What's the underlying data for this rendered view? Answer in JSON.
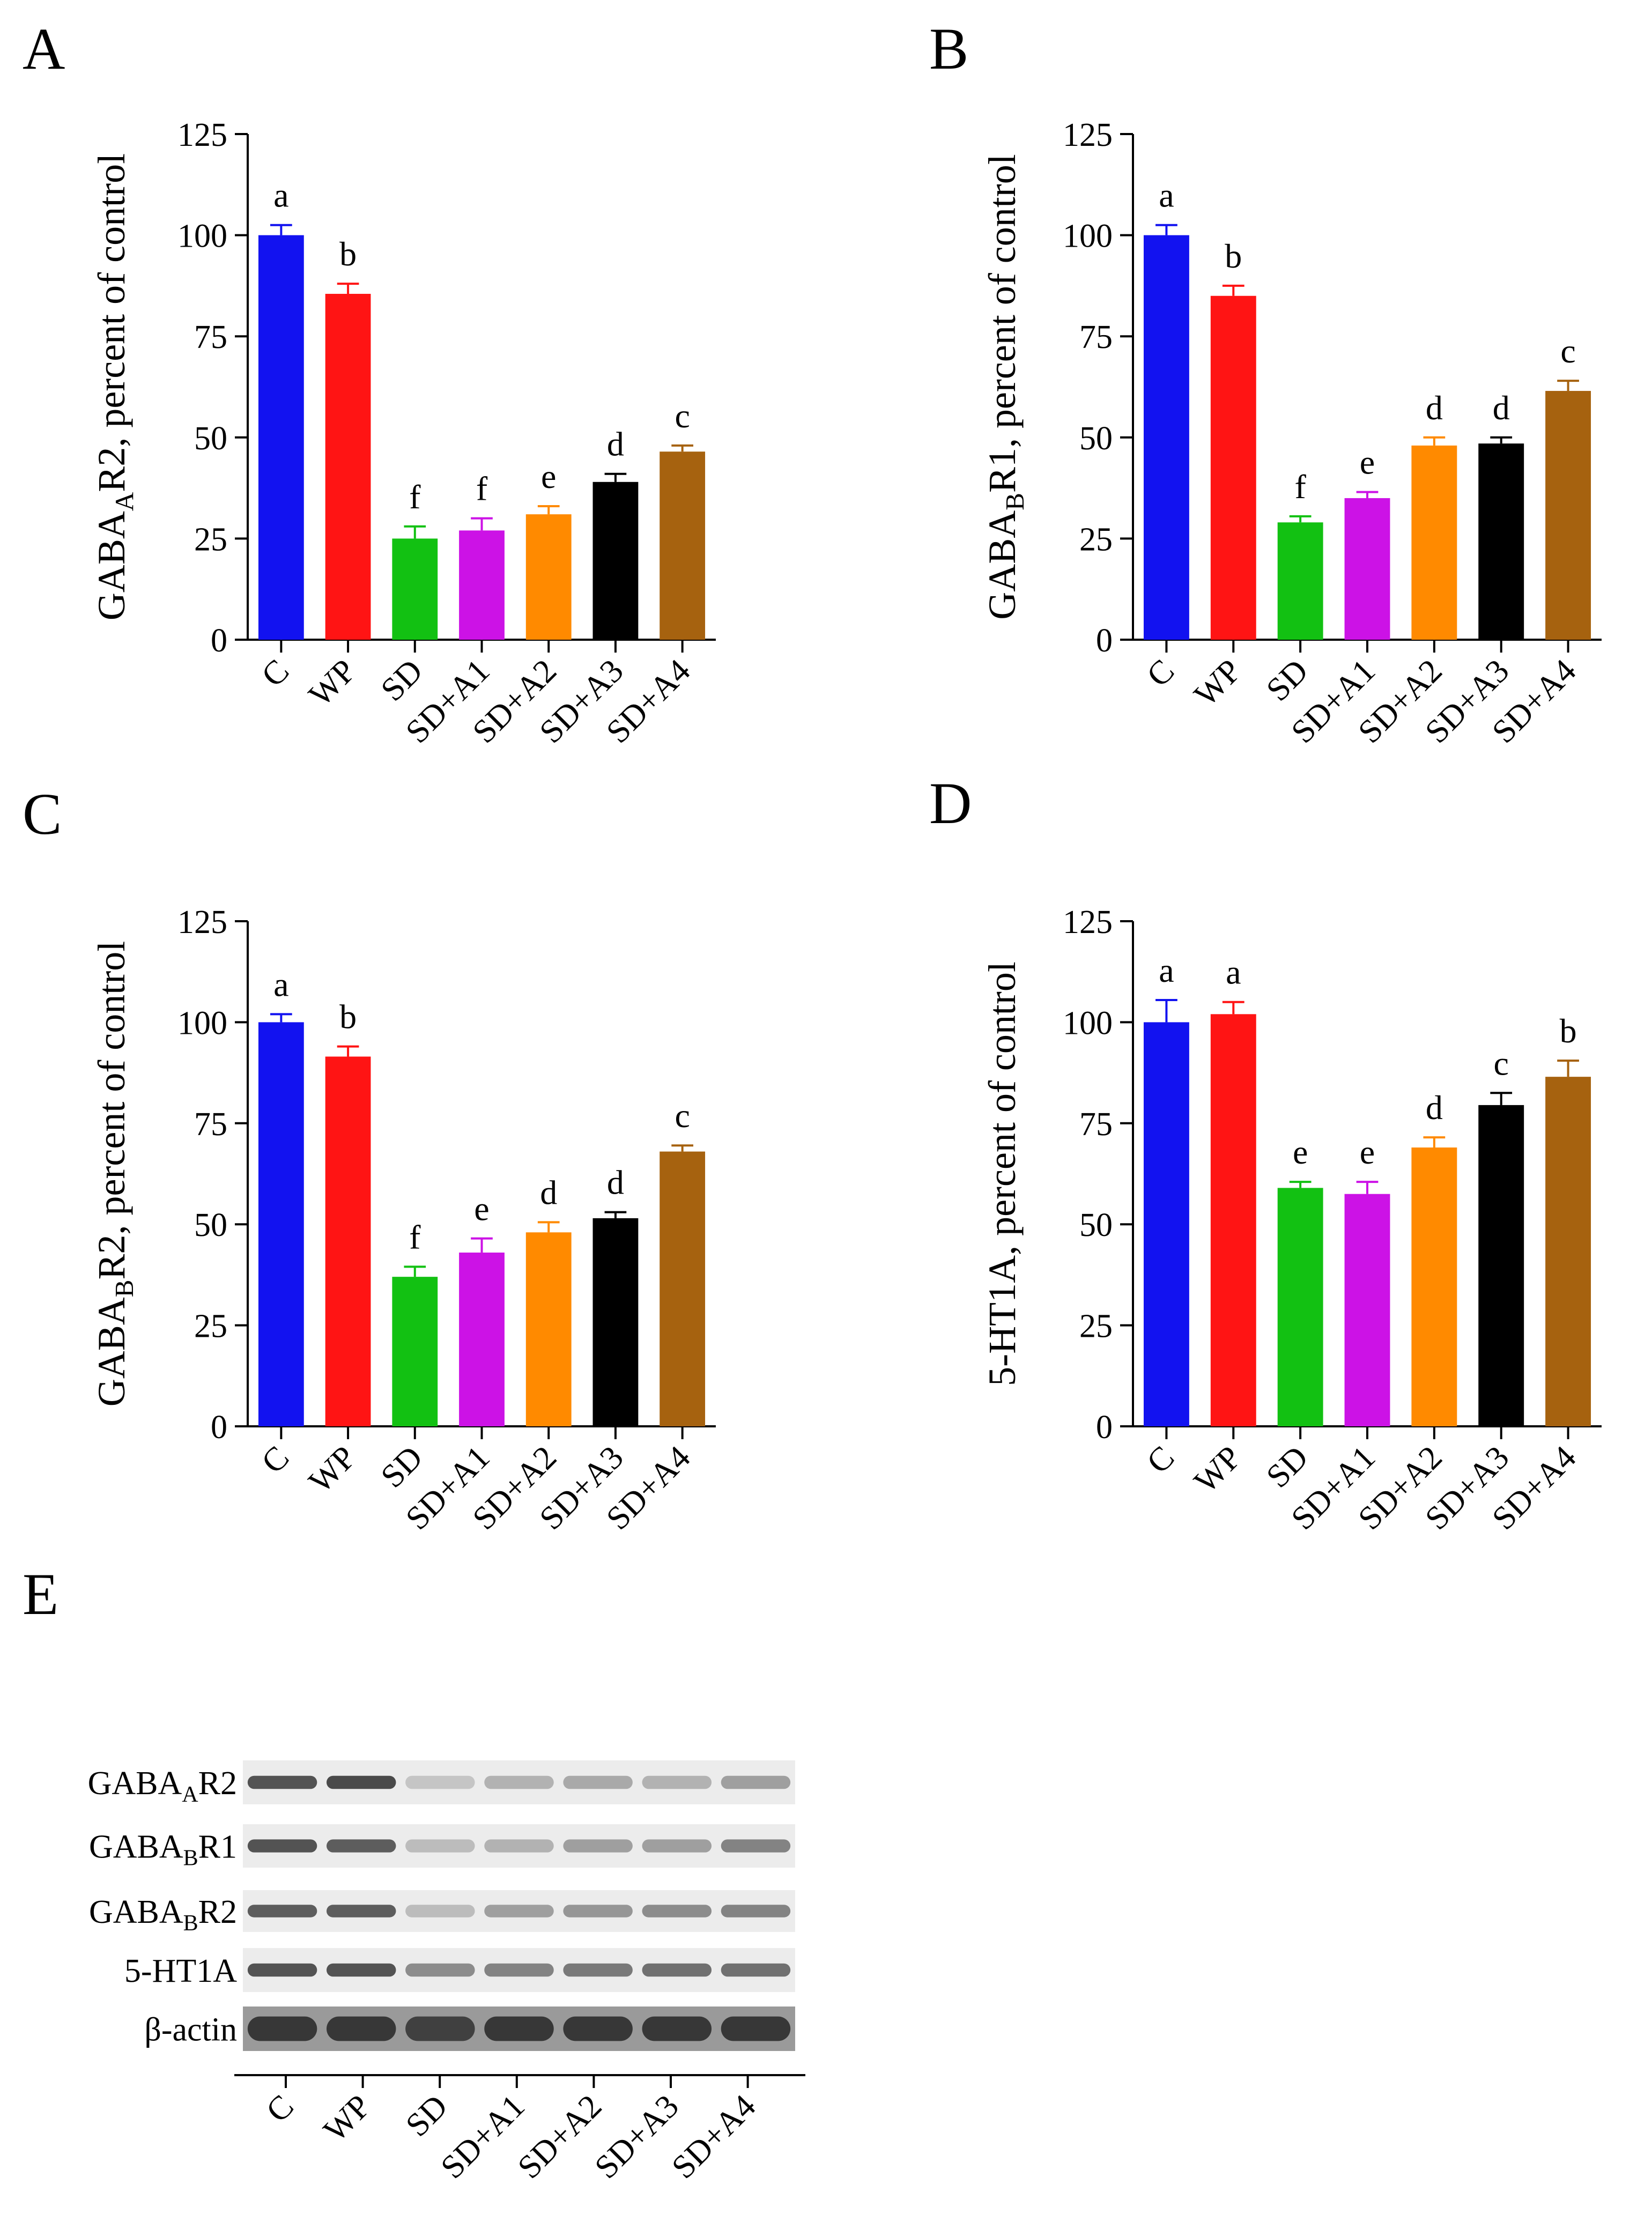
{
  "panel_letters": [
    "A",
    "B",
    "C",
    "D",
    "E"
  ],
  "colors": {
    "C": "#1212f0",
    "WP": "#ff1414",
    "SD": "#12c112",
    "SD+A1": "#cc12e6",
    "SD+A2": "#ff8a00",
    "SD+A3": "#000000",
    "SD+A4": "#a6620f",
    "axis": "#000000"
  },
  "chart_data": [
    {
      "type": "bar",
      "panel": "A",
      "ylabel_main": "GABA",
      "ylabel_sub": "A",
      "ylabel_rest": "R2, percent of control",
      "categories": [
        "C",
        "WP",
        "SD",
        "SD+A1",
        "SD+A2",
        "SD+A3",
        "SD+A4"
      ],
      "values": [
        100,
        85.5,
        25,
        27,
        31,
        39,
        46.5
      ],
      "errors": [
        2.5,
        2.5,
        3,
        3,
        2,
        2,
        1.5
      ],
      "letters": [
        "a",
        "b",
        "f",
        "f",
        "e",
        "d",
        "c"
      ],
      "ylim": [
        0,
        125
      ],
      "yticks": [
        "0",
        "25",
        "50",
        "75",
        "100",
        "125"
      ]
    },
    {
      "type": "bar",
      "panel": "B",
      "ylabel_main": "GABA",
      "ylabel_sub": "B",
      "ylabel_rest": "R1, percent of control",
      "categories": [
        "C",
        "WP",
        "SD",
        "SD+A1",
        "SD+A2",
        "SD+A3",
        "SD+A4"
      ],
      "values": [
        100,
        85,
        29,
        35,
        48,
        48.5,
        61.5
      ],
      "errors": [
        2.5,
        2.5,
        1.5,
        1.5,
        2,
        1.5,
        2.5
      ],
      "letters": [
        "a",
        "b",
        "f",
        "e",
        "d",
        "d",
        "c"
      ],
      "ylim": [
        0,
        125
      ],
      "yticks": [
        "0",
        "25",
        "50",
        "75",
        "100",
        "125"
      ]
    },
    {
      "type": "bar",
      "panel": "C",
      "ylabel_main": "GABA",
      "ylabel_sub": "B",
      "ylabel_rest": "R2, percent of control",
      "categories": [
        "C",
        "WP",
        "SD",
        "SD+A1",
        "SD+A2",
        "SD+A3",
        "SD+A4"
      ],
      "values": [
        100,
        91.5,
        37,
        43,
        48,
        51.5,
        68
      ],
      "errors": [
        2,
        2.5,
        2.5,
        3.5,
        2.5,
        1.5,
        1.5
      ],
      "letters": [
        "a",
        "b",
        "f",
        "e",
        "d",
        "d",
        "c"
      ],
      "ylim": [
        0,
        125
      ],
      "yticks": [
        "0",
        "25",
        "50",
        "75",
        "100",
        "125"
      ]
    },
    {
      "type": "bar",
      "panel": "D",
      "ylabel_main": "5-HT1A, percent of control",
      "ylabel_sub": "",
      "ylabel_rest": "",
      "categories": [
        "C",
        "WP",
        "SD",
        "SD+A1",
        "SD+A2",
        "SD+A3",
        "SD+A4"
      ],
      "values": [
        100,
        102,
        59,
        57.5,
        69,
        79.5,
        86.5
      ],
      "errors": [
        5.5,
        3,
        1.5,
        3,
        2.5,
        3,
        4
      ],
      "letters": [
        "a",
        "a",
        "e",
        "e",
        "d",
        "c",
        "b"
      ],
      "ylim": [
        0,
        125
      ],
      "yticks": [
        "0",
        "25",
        "50",
        "75",
        "100",
        "125"
      ]
    }
  ],
  "blot": {
    "rows": [
      {
        "main": "GABA",
        "sub": "A",
        "rest": "R2",
        "intensities": [
          0.8,
          0.85,
          0.2,
          0.3,
          0.35,
          0.3,
          0.4
        ]
      },
      {
        "main": "GABA",
        "sub": "B",
        "rest": "R1",
        "intensities": [
          0.8,
          0.75,
          0.25,
          0.3,
          0.4,
          0.4,
          0.55
        ]
      },
      {
        "main": "GABA",
        "sub": "B",
        "rest": "R2",
        "intensities": [
          0.75,
          0.75,
          0.25,
          0.4,
          0.45,
          0.5,
          0.55
        ]
      },
      {
        "main": "5-HT1A",
        "sub": "",
        "rest": "",
        "intensities": [
          0.8,
          0.8,
          0.5,
          0.55,
          0.6,
          0.65,
          0.65
        ]
      },
      {
        "main": "β-actin",
        "sub": "",
        "rest": "",
        "intensities": [
          0.95,
          0.95,
          0.9,
          0.95,
          0.95,
          0.95,
          0.95
        ]
      }
    ],
    "lanes": [
      "C",
      "WP",
      "SD",
      "SD+A1",
      "SD+A2",
      "SD+A3",
      "SD+A4"
    ]
  }
}
